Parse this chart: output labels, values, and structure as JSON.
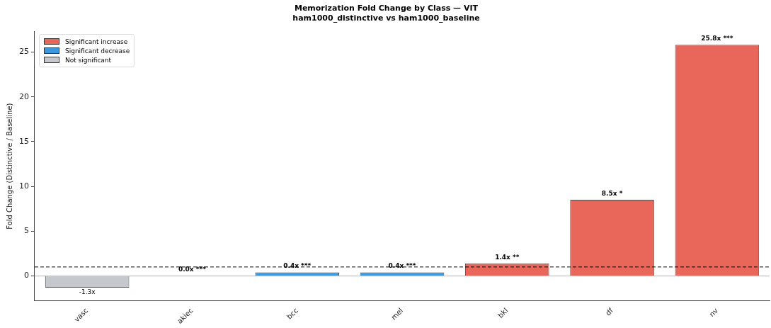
{
  "chart_data": {
    "type": "bar",
    "title": "Memorization Fold Change by Class — VIT",
    "subtitle": "ham1000_distinctive vs ham1000_baseline",
    "ylabel": "Fold Change (Distinctive / Baseline)",
    "categories": [
      "vasc",
      "akiec",
      "bcc",
      "mel",
      "bkl",
      "df",
      "nv"
    ],
    "series": [
      {
        "name": "Significant increase",
        "color": "#e8675a",
        "values": [
          null,
          null,
          null,
          null,
          1.4,
          8.5,
          25.8
        ],
        "value_labels": [
          null,
          null,
          null,
          null,
          "1.4x **",
          "8.5x *",
          "25.8x ***"
        ]
      },
      {
        "name": "Significant decrease",
        "color": "#3d97dc",
        "values": [
          null,
          0.0,
          0.4,
          0.4,
          null,
          null,
          null
        ],
        "value_labels": [
          null,
          "0.0x ***",
          "0.4x ***",
          "0.4x ***",
          null,
          null,
          null
        ]
      },
      {
        "name": "Not significant",
        "color": "#c5c9cd",
        "values": [
          -1.3,
          null,
          null,
          null,
          null,
          null,
          null
        ],
        "value_labels": [
          "-1.3x",
          null,
          null,
          null,
          null,
          null,
          null
        ]
      }
    ],
    "ylim": [
      -2.8,
      27.3
    ],
    "yticks": [
      0,
      5,
      10,
      15,
      20,
      25
    ],
    "ref_lines": [
      {
        "axis": "y",
        "value": 0,
        "color": "#cccccc",
        "line_style": "solid"
      },
      {
        "axis": "y",
        "value": 1,
        "color": "#000000",
        "line_style": "dashed"
      }
    ],
    "legend": "top left",
    "grid": false
  }
}
